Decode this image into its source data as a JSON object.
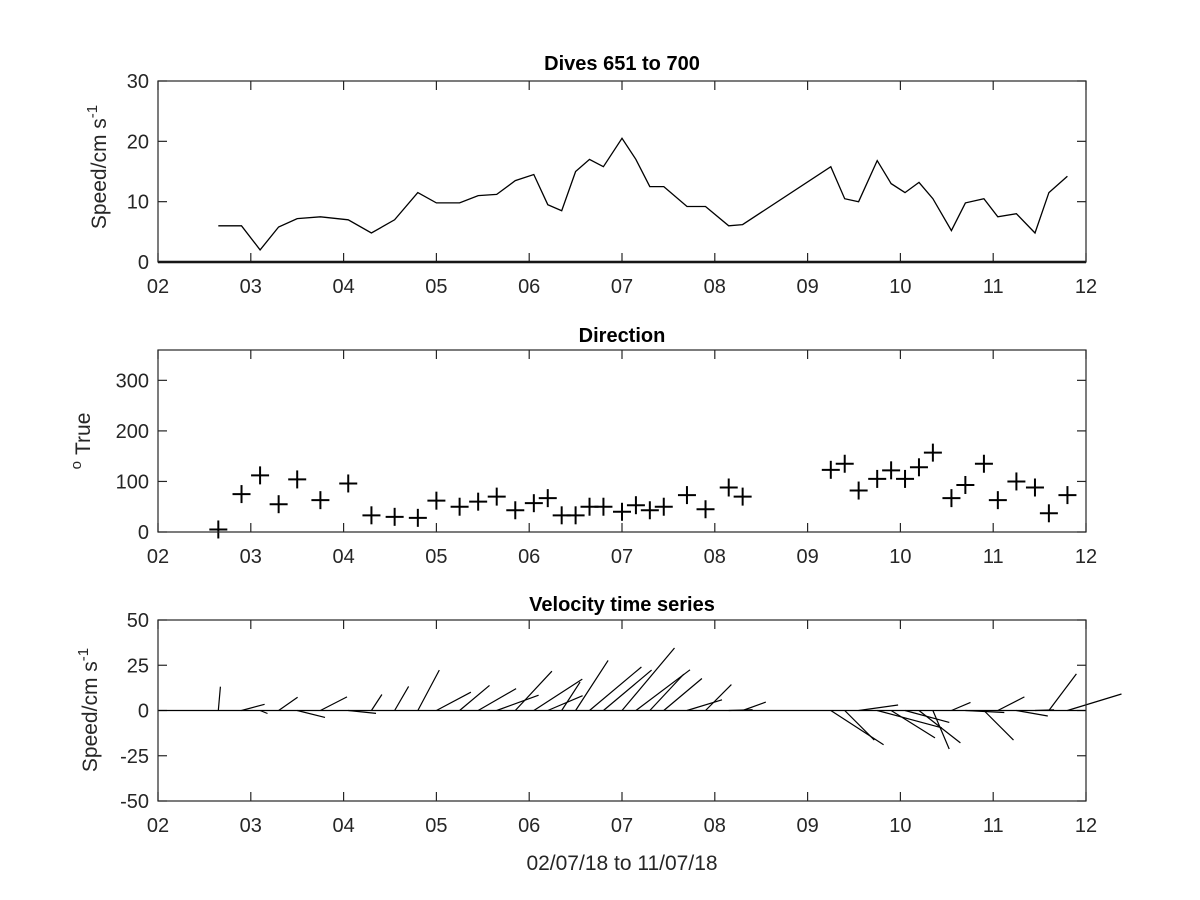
{
  "colors": {
    "line": "#000000",
    "axis": "#262626",
    "background": "#ffffff"
  },
  "x_tick_labels": [
    "02",
    "03",
    "04",
    "05",
    "06",
    "07",
    "08",
    "09",
    "10",
    "11",
    "12"
  ],
  "xlabel": "02/07/18 to 11/07/18",
  "chart_data": [
    {
      "type": "line",
      "title": "Dives 651 to 700",
      "ylabel": "Speed/cm s",
      "ylabel_superscript": "-1",
      "xlim": [
        2,
        12
      ],
      "ylim": [
        0,
        30
      ],
      "y_ticks": [
        0,
        10,
        20,
        30
      ],
      "baseline": 0,
      "x": [
        2.65,
        2.9,
        3.1,
        3.3,
        3.5,
        3.75,
        4.05,
        4.3,
        4.55,
        4.8,
        5.0,
        5.25,
        5.45,
        5.65,
        5.85,
        6.05,
        6.2,
        6.35,
        6.5,
        6.65,
        6.8,
        7.0,
        7.15,
        7.3,
        7.45,
        7.7,
        7.9,
        8.15,
        8.3,
        9.25,
        9.4,
        9.55,
        9.75,
        9.9,
        10.05,
        10.2,
        10.35,
        10.55,
        10.7,
        10.9,
        11.05,
        11.25,
        11.45,
        11.6,
        11.8
      ],
      "y": [
        6,
        6,
        2,
        5.8,
        7.2,
        7.5,
        7,
        4.8,
        7,
        11.5,
        9.8,
        9.8,
        11,
        11.2,
        13.5,
        14.5,
        9.5,
        8.5,
        15,
        17,
        15.8,
        20.5,
        17,
        12.5,
        12.5,
        9.2,
        9.2,
        6,
        6.2,
        15.8,
        10.5,
        10,
        16.8,
        13,
        11.5,
        13.2,
        10.5,
        5.2,
        9.8,
        10.5,
        7.5,
        8,
        4.8,
        11.5,
        14.2
      ]
    },
    {
      "type": "scatter",
      "marker": "+",
      "title": "Direction",
      "ylabel": "True",
      "ylabel_superscript": "o",
      "xlim": [
        2,
        12
      ],
      "ylim": [
        0,
        360
      ],
      "y_ticks": [
        0,
        100,
        200,
        300
      ],
      "x": [
        2.65,
        2.9,
        3.1,
        3.3,
        3.5,
        3.75,
        4.05,
        4.3,
        4.55,
        4.8,
        5.0,
        5.25,
        5.45,
        5.65,
        5.85,
        6.05,
        6.2,
        6.35,
        6.5,
        6.65,
        6.8,
        7.0,
        7.15,
        7.3,
        7.45,
        7.7,
        7.9,
        8.15,
        8.3,
        9.25,
        9.4,
        9.55,
        9.75,
        9.9,
        10.05,
        10.2,
        10.35,
        10.55,
        10.7,
        10.9,
        11.05,
        11.25,
        11.45,
        11.6,
        11.8
      ],
      "y": [
        5,
        75,
        112,
        55,
        104,
        63,
        96,
        33,
        30,
        28,
        62,
        50,
        60,
        70,
        43,
        57,
        67,
        33,
        33,
        50,
        50,
        40,
        53,
        43,
        50,
        73,
        45,
        88,
        70,
        123,
        135,
        82,
        105,
        122,
        105,
        128,
        157,
        67,
        93,
        135,
        63,
        100,
        88,
        37,
        73
      ]
    },
    {
      "type": "quiver",
      "title": "Velocity time series",
      "ylabel": "Speed/cm s",
      "ylabel_superscript": "-1",
      "xlim": [
        2,
        12
      ],
      "ylim": [
        -50,
        50
      ],
      "y_ticks": [
        -50,
        -25,
        0,
        25,
        50
      ],
      "baseline": 0,
      "x": [
        2.65,
        2.9,
        3.1,
        3.3,
        3.5,
        3.75,
        4.05,
        4.3,
        4.55,
        4.8,
        5.0,
        5.25,
        5.45,
        5.65,
        5.85,
        6.05,
        6.2,
        6.35,
        6.5,
        6.65,
        6.8,
        7.0,
        7.15,
        7.3,
        7.45,
        7.7,
        7.9,
        8.15,
        8.3,
        9.25,
        9.4,
        9.55,
        9.75,
        9.9,
        10.05,
        10.2,
        10.35,
        10.55,
        10.7,
        10.9,
        11.05,
        11.25,
        11.45,
        11.6,
        11.8
      ],
      "speed": [
        6,
        6,
        2,
        5.8,
        7.2,
        7.5,
        7,
        4.8,
        7,
        11.5,
        9.8,
        9.8,
        11,
        11.2,
        13.5,
        14.5,
        9.5,
        8.5,
        15,
        17,
        15.8,
        20.5,
        17,
        12.5,
        12.5,
        9.2,
        9.2,
        6,
        6.2,
        15.8,
        10.5,
        10,
        16.8,
        13,
        11.5,
        13.2,
        10.5,
        5.2,
        9.8,
        10.5,
        7.5,
        8,
        4.8,
        11.5,
        14.2
      ],
      "direction_deg_true": [
        5,
        75,
        112,
        55,
        104,
        63,
        96,
        33,
        30,
        28,
        62,
        50,
        60,
        70,
        43,
        57,
        67,
        33,
        33,
        50,
        50,
        40,
        53,
        43,
        50,
        73,
        45,
        88,
        70,
        123,
        135,
        82,
        105,
        122,
        105,
        128,
        157,
        67,
        93,
        135,
        63,
        100,
        88,
        37,
        73
      ]
    }
  ]
}
